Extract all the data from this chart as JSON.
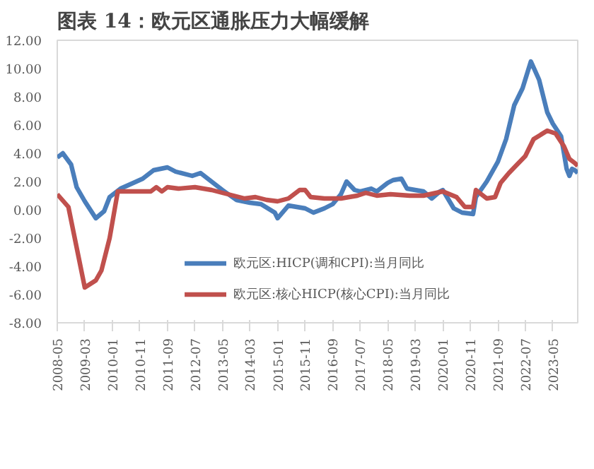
{
  "chart_data": {
    "type": "line",
    "title": "图表 14：欧元区通胀压力大幅缓解",
    "ylim": [
      -8,
      12
    ],
    "yticks": [
      {
        "value": -8,
        "label": "-8.00"
      },
      {
        "value": -6,
        "label": "-6.00"
      },
      {
        "value": -4,
        "label": "-4.00"
      },
      {
        "value": -2,
        "label": "-2.00"
      },
      {
        "value": 0,
        "label": "0.00"
      },
      {
        "value": 2,
        "label": "2.00"
      },
      {
        "value": 4,
        "label": "4.00"
      },
      {
        "value": 6,
        "label": "6.00"
      },
      {
        "value": 8,
        "label": "8.00"
      },
      {
        "value": 10,
        "label": "10.00"
      },
      {
        "value": 12,
        "label": "12.00"
      }
    ],
    "xlim": [
      "2008-05",
      "2024-02"
    ],
    "xticks": [
      "2008-05",
      "2009-03",
      "2010-01",
      "2010-11",
      "2011-09",
      "2012-07",
      "2013-05",
      "2014-03",
      "2015-01",
      "2015-11",
      "2016-09",
      "2017-07",
      "2018-05",
      "2019-03",
      "2020-01",
      "2020-11",
      "2021-09",
      "2022-07",
      "2023-05"
    ],
    "grid": false,
    "legend": "bottom",
    "series": [
      {
        "name": "欧元区:HICP(调和CPI):当月同比",
        "color": "#4a7ebb",
        "x": [
          "2008-05",
          "2008-07",
          "2008-10",
          "2008-12",
          "2009-03",
          "2009-07",
          "2009-10",
          "2009-12",
          "2010-04",
          "2010-12",
          "2011-04",
          "2011-09",
          "2011-12",
          "2012-06",
          "2012-09",
          "2013-03",
          "2013-05",
          "2013-10",
          "2014-03",
          "2014-07",
          "2014-12",
          "2015-01",
          "2015-05",
          "2015-11",
          "2016-02",
          "2016-06",
          "2016-09",
          "2016-12",
          "2017-02",
          "2017-05",
          "2017-07",
          "2017-11",
          "2018-01",
          "2018-05",
          "2018-07",
          "2018-10",
          "2018-12",
          "2019-03",
          "2019-06",
          "2019-09",
          "2019-12",
          "2020-01",
          "2020-05",
          "2020-08",
          "2020-12",
          "2021-01",
          "2021-05",
          "2021-09",
          "2021-12",
          "2022-03",
          "2022-06",
          "2022-09",
          "2022-12",
          "2023-03",
          "2023-05",
          "2023-08",
          "2023-10",
          "2023-11",
          "2023-12",
          "2024-01",
          "2024-02"
        ],
        "values": [
          3.7,
          4.0,
          3.2,
          1.6,
          0.6,
          -0.6,
          -0.1,
          0.9,
          1.5,
          2.2,
          2.8,
          3.0,
          2.7,
          2.4,
          2.6,
          1.7,
          1.4,
          0.7,
          0.5,
          0.4,
          -0.2,
          -0.6,
          0.3,
          0.1,
          -0.2,
          0.1,
          0.4,
          1.1,
          2.0,
          1.4,
          1.3,
          1.5,
          1.3,
          1.9,
          2.1,
          2.2,
          1.5,
          1.4,
          1.3,
          0.8,
          1.3,
          1.4,
          0.1,
          -0.2,
          -0.3,
          0.9,
          2.0,
          3.4,
          5.0,
          7.4,
          8.6,
          10.5,
          9.2,
          6.9,
          6.1,
          5.2,
          2.9,
          2.4,
          2.9,
          2.8,
          2.6
        ]
      },
      {
        "name": "欧元区:核心HICP(核心CPI):当月同比",
        "color": "#c0504d",
        "x": [
          "2008-05",
          "2008-09",
          "2009-03",
          "2009-07",
          "2009-09",
          "2009-12",
          "2010-03",
          "2011-03",
          "2011-05",
          "2011-07",
          "2011-09",
          "2012-01",
          "2012-07",
          "2013-01",
          "2013-05",
          "2013-09",
          "2014-01",
          "2014-05",
          "2014-09",
          "2015-01",
          "2015-05",
          "2015-09",
          "2015-11",
          "2016-01",
          "2016-06",
          "2016-12",
          "2017-06",
          "2017-09",
          "2018-01",
          "2018-06",
          "2019-01",
          "2019-06",
          "2020-01",
          "2020-06",
          "2020-09",
          "2020-12",
          "2021-01",
          "2021-05",
          "2021-08",
          "2021-10",
          "2022-01",
          "2022-04",
          "2022-07",
          "2022-10",
          "2023-03",
          "2023-06",
          "2023-09",
          "2023-11",
          "2024-01",
          "2024-02"
        ],
        "values": [
          1.1,
          0.2,
          -5.5,
          -5.0,
          -4.3,
          -2.0,
          1.3,
          1.3,
          1.6,
          1.3,
          1.6,
          1.5,
          1.6,
          1.4,
          1.2,
          1.0,
          0.8,
          0.9,
          0.7,
          0.6,
          0.8,
          1.4,
          1.4,
          0.9,
          0.8,
          0.8,
          1.0,
          1.2,
          1.0,
          1.1,
          1.0,
          1.0,
          1.3,
          0.9,
          0.2,
          0.2,
          1.4,
          0.8,
          0.9,
          1.9,
          2.6,
          3.2,
          3.8,
          5.0,
          5.6,
          5.4,
          4.5,
          3.6,
          3.3,
          3.1
        ]
      }
    ]
  }
}
